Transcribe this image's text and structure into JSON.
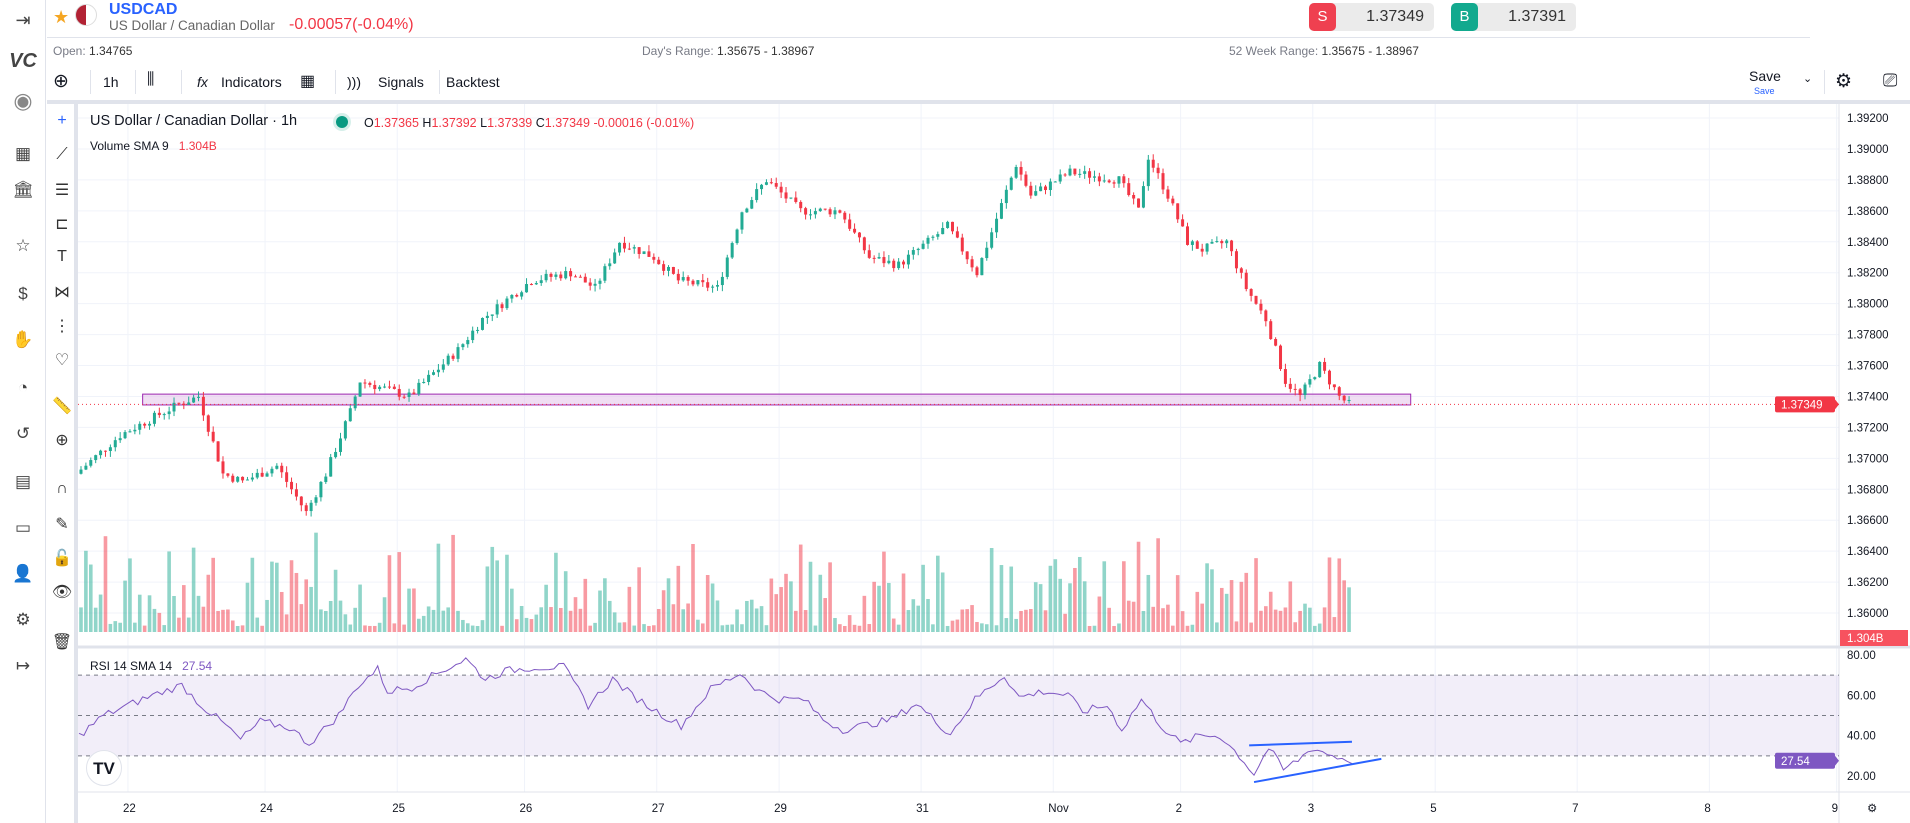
{
  "header": {
    "symbol": "USDCAD",
    "name": "US Dollar / Canadian Dollar",
    "change": "-0.00057(-0.04%)",
    "open_label": "Open:",
    "open": "1.34765",
    "days_range_label": "Day's Range:",
    "days_range": "1.35675 - 1.38967",
    "week52_label": "52 Week Range:",
    "week52": "1.35675 - 1.38967",
    "sell_tag": "S",
    "sell": "1.37349",
    "buy_tag": "B",
    "buy": "1.37391"
  },
  "toolbar": {
    "interval": "1h",
    "indicators": "Indicators",
    "signals": "Signals",
    "backtest": "Backtest",
    "save": "Save",
    "save_sub": "Save"
  },
  "legend": {
    "title": "US Dollar / Canadian Dollar · 1h",
    "o_label": "O",
    "o": "1.37365",
    "h_label": "H",
    "h": "1.37392",
    "l_label": "L",
    "l": "1.37339",
    "c_label": "C",
    "c": "1.37349",
    "chg": "-0.00016 (-0.01%)",
    "volume_label": "Volume SMA 9",
    "volume": "1.304B",
    "rsi_label": "RSI 14 SMA 14",
    "rsi": "27.54"
  },
  "colors": {
    "up": "#22ab94",
    "down": "#f23645",
    "rsi": "#7e57c2",
    "accent": "#2962ff"
  },
  "chart_data": {
    "type": "candlestick",
    "price_ticks": [
      "1.39200",
      "1.39000",
      "1.38800",
      "1.38600",
      "1.38400",
      "1.38200",
      "1.38000",
      "1.37800",
      "1.37600",
      "1.37400",
      "1.37200",
      "1.37000",
      "1.36800",
      "1.36600",
      "1.36400",
      "1.36200",
      "1.36000"
    ],
    "price_range": [
      1.36,
      1.392
    ],
    "last_price": "1.37349",
    "last_volume": "1.304B",
    "rsi_ticks": [
      "80.00",
      "60.00",
      "40.00",
      "20.00"
    ],
    "rsi_range": [
      20,
      80
    ],
    "rsi_last": "27.54",
    "time_labels": [
      [
        "22",
        10
      ],
      [
        "24",
        38
      ],
      [
        "25",
        65
      ],
      [
        "26",
        91
      ],
      [
        "27",
        118
      ],
      [
        "29",
        143
      ],
      [
        "31",
        172
      ],
      [
        "Nov",
        199
      ],
      [
        "2",
        225
      ],
      [
        "3",
        252
      ],
      [
        "5",
        277
      ],
      [
        "7",
        306
      ],
      [
        "8",
        333
      ],
      [
        "9",
        359
      ]
    ],
    "candle_count": 260,
    "price_path": [
      [
        0,
        1.369
      ],
      [
        9,
        1.3715
      ],
      [
        21,
        1.3735
      ],
      [
        25,
        1.374
      ],
      [
        30,
        1.369
      ],
      [
        34,
        1.3685
      ],
      [
        41,
        1.3695
      ],
      [
        47,
        1.3665
      ],
      [
        51,
        1.369
      ],
      [
        56,
        1.373
      ],
      [
        58,
        1.375
      ],
      [
        68,
        1.374
      ],
      [
        78,
        1.377
      ],
      [
        83,
        1.379
      ],
      [
        93,
        1.3815
      ],
      [
        101,
        1.382
      ],
      [
        106,
        1.381
      ],
      [
        111,
        1.384
      ],
      [
        118,
        1.383
      ],
      [
        123,
        1.3815
      ],
      [
        131,
        1.381
      ],
      [
        136,
        1.386
      ],
      [
        141,
        1.388
      ],
      [
        148,
        1.386
      ],
      [
        156,
        1.386
      ],
      [
        162,
        1.383
      ],
      [
        168,
        1.3825
      ],
      [
        178,
        1.385
      ],
      [
        184,
        1.382
      ],
      [
        192,
        1.389
      ],
      [
        195,
        1.387
      ],
      [
        203,
        1.3885
      ],
      [
        213,
        1.388
      ],
      [
        217,
        1.386
      ],
      [
        219,
        1.3895
      ],
      [
        223,
        1.387
      ],
      [
        227,
        1.384
      ],
      [
        230,
        1.3835
      ],
      [
        235,
        1.384
      ],
      [
        239,
        1.381
      ],
      [
        243,
        1.379
      ],
      [
        247,
        1.375
      ],
      [
        250,
        1.374
      ],
      [
        254,
        1.376
      ],
      [
        258,
        1.374
      ],
      [
        260,
        1.37349
      ]
    ],
    "rsi_path": [
      [
        0,
        40
      ],
      [
        5,
        50
      ],
      [
        10,
        55
      ],
      [
        15,
        60
      ],
      [
        21,
        65
      ],
      [
        25,
        55
      ],
      [
        30,
        45
      ],
      [
        33,
        38
      ],
      [
        37,
        47
      ],
      [
        43,
        44
      ],
      [
        47,
        36
      ],
      [
        53,
        50
      ],
      [
        57,
        65
      ],
      [
        61,
        73
      ],
      [
        63,
        62
      ],
      [
        68,
        64
      ],
      [
        74,
        72
      ],
      [
        79,
        78
      ],
      [
        83,
        68
      ],
      [
        87,
        72
      ],
      [
        93,
        74
      ],
      [
        99,
        74
      ],
      [
        104,
        55
      ],
      [
        109,
        68
      ],
      [
        113,
        60
      ],
      [
        118,
        52
      ],
      [
        123,
        45
      ],
      [
        129,
        63
      ],
      [
        135,
        71
      ],
      [
        139,
        62
      ],
      [
        143,
        58
      ],
      [
        148,
        58
      ],
      [
        152,
        48
      ],
      [
        156,
        43
      ],
      [
        160,
        45
      ],
      [
        166,
        48
      ],
      [
        171,
        56
      ],
      [
        175,
        47
      ],
      [
        178,
        41
      ],
      [
        183,
        58
      ],
      [
        189,
        70
      ],
      [
        192,
        59
      ],
      [
        197,
        62
      ],
      [
        202,
        60
      ],
      [
        205,
        52
      ],
      [
        210,
        55
      ],
      [
        213,
        43
      ],
      [
        217,
        58
      ],
      [
        221,
        45
      ],
      [
        225,
        36
      ],
      [
        229,
        40
      ],
      [
        233,
        40
      ],
      [
        237,
        30
      ],
      [
        240,
        21
      ],
      [
        243,
        34
      ],
      [
        246,
        23
      ],
      [
        249,
        28
      ],
      [
        252,
        34
      ],
      [
        256,
        30
      ],
      [
        260,
        27.54
      ]
    ],
    "rectangle": {
      "from": [
        13,
        1.37415
      ],
      "to": [
        272,
        1.37345
      ]
    },
    "trendlines": [
      {
        "from": [
          239,
          35.2
        ],
        "to": [
          260,
          37
        ]
      },
      {
        "from": [
          240,
          17
        ],
        "to": [
          266,
          28.5
        ]
      }
    ]
  }
}
